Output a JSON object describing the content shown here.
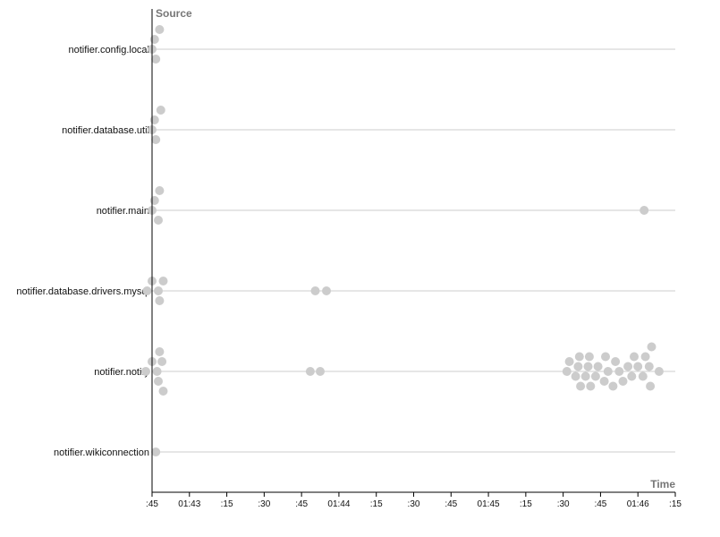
{
  "chart_data": {
    "type": "scatter",
    "title": "",
    "ylabel": "Source",
    "xlabel": "Time",
    "categories": [
      "notifier.config.local",
      "notifier.database.util",
      "notifier.main",
      "notifier.database.drivers.mysql",
      "notifier.notify",
      "notifier.wikiconnection"
    ],
    "x_ticks": [
      ":45",
      "01:43",
      ":15",
      ":30",
      ":45",
      "01:44",
      ":15",
      ":30",
      ":45",
      "01:45",
      ":15",
      ":30",
      ":45",
      "01:46",
      ":15"
    ],
    "xlim_seconds_from_first_tick": [
      0,
      210
    ],
    "grid": false,
    "series": [
      {
        "category": "notifier.config.local",
        "x": [
          0,
          1,
          1.5,
          3
        ]
      },
      {
        "category": "notifier.database.util",
        "x": [
          0,
          1,
          1.5,
          3.5
        ]
      },
      {
        "category": "notifier.main",
        "x": [
          0,
          1,
          2.5,
          3,
          197.5
        ]
      },
      {
        "category": "notifier.database.drivers.mysql",
        "x": [
          -2,
          0,
          2.5,
          3,
          4.5,
          65.5,
          70
        ]
      },
      {
        "category": "notifier.notify",
        "x": [
          -2.5,
          0,
          2,
          2.5,
          3,
          4,
          4.5,
          63.5,
          67.5,
          166.5,
          167.5,
          170,
          171,
          171.5,
          172,
          174,
          175,
          175.5,
          176,
          178,
          179,
          181.5,
          182,
          183,
          185,
          186,
          187.5,
          189,
          191,
          192.5,
          193.5,
          195,
          197,
          198,
          199.5,
          200,
          200.5,
          203.5
        ]
      },
      {
        "category": "notifier.wikiconnection",
        "x": [
          1.5
        ]
      }
    ]
  }
}
